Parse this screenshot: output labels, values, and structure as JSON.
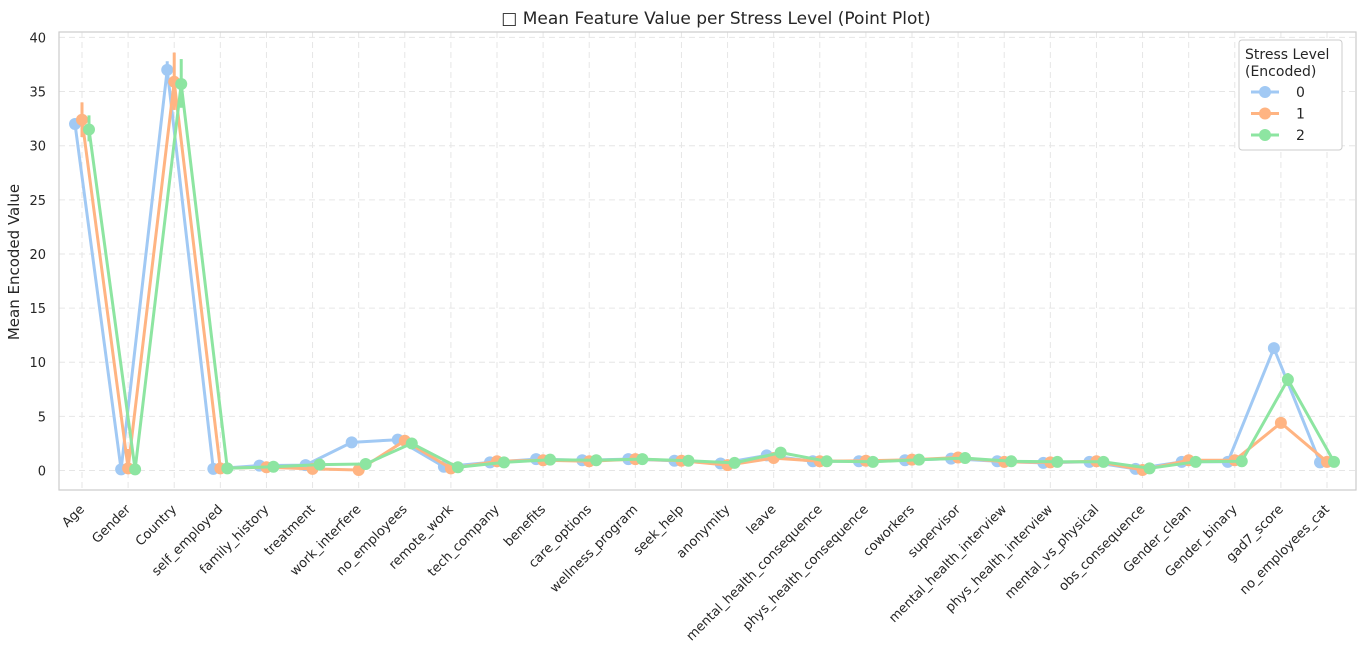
{
  "chart_data": {
    "type": "line",
    "title": "□ Mean Feature Value per Stress Level (Point Plot)",
    "xlabel": "",
    "ylabel": "Mean Encoded Value",
    "ylim": [
      -1.8,
      40.5
    ],
    "yticks": [
      0,
      5,
      10,
      15,
      20,
      25,
      30,
      35,
      40
    ],
    "grid": true,
    "legend": {
      "placement": "top-right",
      "title_lines": [
        "Stress Level",
        "(Encoded)"
      ]
    },
    "categories": [
      "Age",
      "Gender",
      "Country",
      "self_employed",
      "family_history",
      "treatment",
      "work_interfere",
      "no_employees",
      "remote_work",
      "tech_company",
      "benefits",
      "care_options",
      "wellness_program",
      "seek_help",
      "anonymity",
      "leave",
      "mental_health_consequence",
      "phys_health_consequence",
      "coworkers",
      "supervisor",
      "mental_health_interview",
      "phys_health_interview",
      "mental_vs_physical",
      "obs_consequence",
      "Gender_clean",
      "Gender_binary",
      "gad7_score",
      "no_employees_cat"
    ],
    "series": [
      {
        "name": "0",
        "color": "#a1c9f4",
        "values": [
          32.0,
          0.1,
          37.0,
          0.15,
          0.45,
          0.5,
          2.6,
          2.85,
          0.35,
          0.75,
          1.05,
          0.95,
          1.05,
          0.9,
          0.65,
          1.4,
          0.85,
          0.85,
          0.95,
          1.1,
          0.85,
          0.7,
          0.8,
          0.15,
          0.8,
          0.8,
          11.3,
          0.75
        ],
        "err_low": [
          31.8,
          0.0,
          35.8,
          0.12,
          0.4,
          0.45,
          2.5,
          2.7,
          0.3,
          0.7,
          1.0,
          0.9,
          1.0,
          0.85,
          0.6,
          1.3,
          0.8,
          0.8,
          0.9,
          1.05,
          0.8,
          0.65,
          0.75,
          0.12,
          0.75,
          0.75,
          11.0,
          0.7
        ],
        "err_high": [
          32.3,
          0.2,
          37.8,
          0.18,
          0.5,
          0.55,
          2.7,
          3.0,
          0.4,
          0.8,
          1.1,
          1.0,
          1.1,
          0.95,
          0.7,
          1.5,
          0.9,
          0.9,
          1.0,
          1.15,
          0.9,
          0.75,
          0.85,
          0.18,
          0.85,
          0.85,
          11.6,
          0.8
        ]
      },
      {
        "name": "1",
        "color": "#ffb482",
        "values": [
          32.4,
          0.2,
          35.9,
          0.2,
          0.3,
          0.15,
          0.05,
          2.75,
          0.2,
          0.85,
          0.95,
          0.85,
          1.05,
          0.9,
          0.5,
          1.15,
          0.85,
          0.9,
          1.0,
          1.2,
          0.8,
          0.75,
          0.85,
          0.05,
          0.95,
          0.95,
          4.4,
          0.8
        ],
        "err_low": [
          30.8,
          0.0,
          33.3,
          0.1,
          0.2,
          0.05,
          0.0,
          2.5,
          0.1,
          0.75,
          0.85,
          0.75,
          0.95,
          0.8,
          0.4,
          1.05,
          0.75,
          0.8,
          0.9,
          1.1,
          0.7,
          0.65,
          0.75,
          0.0,
          0.85,
          0.85,
          3.9,
          0.7
        ],
        "err_high": [
          34.0,
          2.0,
          38.6,
          0.3,
          0.4,
          0.25,
          0.15,
          3.0,
          0.3,
          0.95,
          1.05,
          0.95,
          1.15,
          1.0,
          0.6,
          1.25,
          0.95,
          1.0,
          1.1,
          1.3,
          0.9,
          0.85,
          0.95,
          0.15,
          1.05,
          1.05,
          4.9,
          0.9
        ]
      },
      {
        "name": "2",
        "color": "#8de5a1",
        "values": [
          31.5,
          0.1,
          35.7,
          0.2,
          0.35,
          0.55,
          0.6,
          2.5,
          0.3,
          0.75,
          1.0,
          0.95,
          1.05,
          0.9,
          0.7,
          1.65,
          0.85,
          0.8,
          1.0,
          1.15,
          0.85,
          0.8,
          0.8,
          0.2,
          0.8,
          0.85,
          8.4,
          0.8
        ],
        "err_low": [
          30.4,
          0.0,
          33.5,
          0.1,
          0.25,
          0.45,
          0.5,
          2.3,
          0.2,
          0.65,
          0.9,
          0.85,
          0.95,
          0.8,
          0.6,
          1.5,
          0.75,
          0.7,
          0.9,
          1.05,
          0.75,
          0.7,
          0.7,
          0.1,
          0.7,
          0.75,
          7.8,
          0.7
        ],
        "err_high": [
          32.8,
          0.2,
          38.0,
          0.3,
          0.45,
          0.65,
          0.7,
          2.7,
          0.4,
          0.85,
          1.1,
          1.05,
          1.15,
          1.0,
          0.8,
          1.8,
          0.95,
          0.9,
          1.1,
          1.25,
          0.95,
          0.9,
          0.9,
          0.3,
          0.9,
          0.95,
          9.0,
          0.9
        ]
      }
    ]
  }
}
